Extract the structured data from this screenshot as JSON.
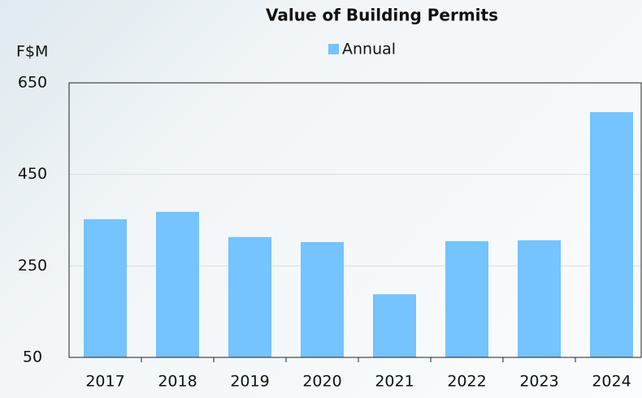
{
  "chart_data": {
    "type": "bar",
    "title": "Value of Building Permits",
    "y_label": "F$M",
    "categories": [
      "2017",
      "2018",
      "2019",
      "2020",
      "2021",
      "2022",
      "2023",
      "2024"
    ],
    "series": [
      {
        "name": "Annual",
        "color": "#75c3ff",
        "values": [
          352,
          368,
          313,
          302,
          188,
          304,
          306,
          586
        ]
      }
    ],
    "ylim": [
      50,
      650
    ],
    "yticks": [
      50,
      250,
      450,
      650
    ],
    "grid": true,
    "legend": "top"
  }
}
